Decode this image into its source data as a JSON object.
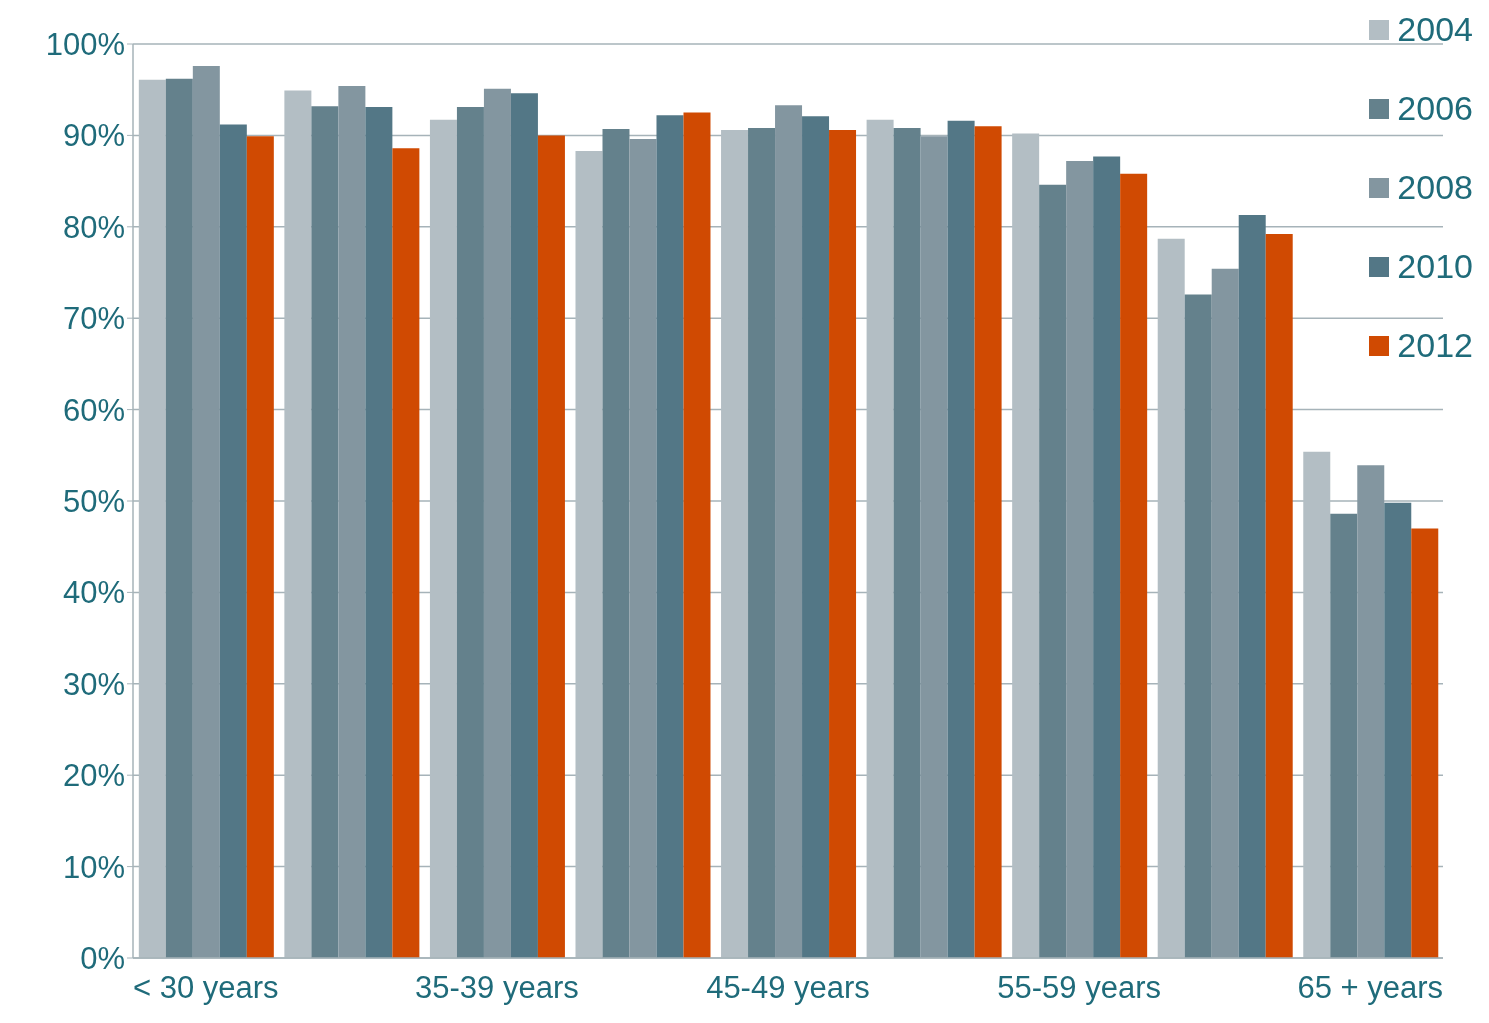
{
  "chart_data": {
    "type": "bar",
    "categories": [
      "< 30 years",
      null,
      "35-39 years",
      null,
      "45-49 years",
      null,
      "55-59 years",
      null,
      "65 + years"
    ],
    "series": [
      {
        "name": "2004",
        "color": "#b3bec4",
        "values": [
          96.1,
          94.9,
          91.7,
          88.3,
          90.6,
          91.7,
          90.2,
          78.7,
          55.4
        ]
      },
      {
        "name": "2006",
        "color": "#64818c",
        "values": [
          96.2,
          93.2,
          93.1,
          90.7,
          90.8,
          90.8,
          84.6,
          72.6,
          48.6
        ]
      },
      {
        "name": "2008",
        "color": "#8396a0",
        "values": [
          97.6,
          95.4,
          95.1,
          89.6,
          93.3,
          89.9,
          87.2,
          75.4,
          53.9
        ]
      },
      {
        "name": "2010",
        "color": "#537786",
        "values": [
          91.2,
          93.1,
          94.6,
          92.2,
          92.1,
          91.6,
          87.7,
          81.3,
          49.8
        ]
      },
      {
        "name": "2012",
        "color": "#d04a02",
        "values": [
          89.9,
          88.6,
          90.0,
          92.5,
          90.6,
          91.0,
          85.8,
          79.2,
          47.0
        ]
      }
    ],
    "ylim": [
      0,
      100
    ],
    "yticks": [
      {
        "value": 0,
        "label": "0%"
      },
      {
        "value": 10,
        "label": "10%"
      },
      {
        "value": 20,
        "label": "20%"
      },
      {
        "value": 30,
        "label": "30%"
      },
      {
        "value": 40,
        "label": "40%"
      },
      {
        "value": 50,
        "label": "50%"
      },
      {
        "value": 60,
        "label": "60%"
      },
      {
        "value": 70,
        "label": "70%"
      },
      {
        "value": 80,
        "label": "80%"
      },
      {
        "value": 90,
        "label": "90%"
      },
      {
        "value": 100,
        "label": "100%"
      }
    ],
    "grid": "y",
    "legend": "top right"
  }
}
